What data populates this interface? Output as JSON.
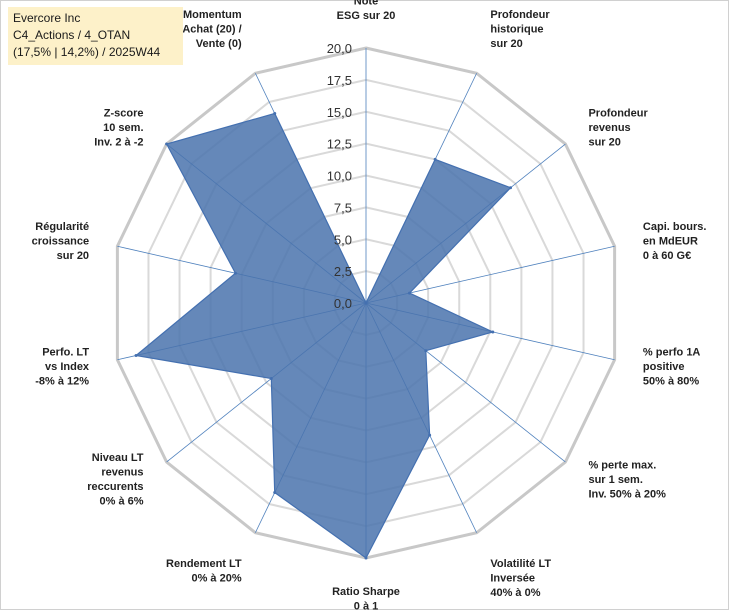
{
  "header": {
    "company": "Evercore Inc",
    "portfolio": "C4_Actions / 4_OTAN",
    "details": "(17,5% | 14,2%) / 2025W44"
  },
  "chart_data": {
    "type": "radar",
    "title": "",
    "rmin": 0,
    "rmax": 20,
    "tick_values": [
      0,
      2.5,
      5,
      7.5,
      10,
      12.5,
      15,
      17.5,
      20
    ],
    "tick_labels": [
      "0,0",
      "2,5",
      "5,0",
      "7,5",
      "10,0",
      "12,5",
      "15,0",
      "17,5",
      "20,0"
    ],
    "grid": true,
    "legend": "none",
    "axes": [
      {
        "label": [
          "Note",
          "ESG sur 20"
        ],
        "value": 0
      },
      {
        "label": [
          "Profondeur",
          "historique",
          "sur 20"
        ],
        "value": 12.5
      },
      {
        "label": [
          "Profondeur",
          "revenus",
          "sur 20"
        ],
        "value": 14.5
      },
      {
        "label": [
          "Capi. bours.",
          "en MdEUR",
          "0 à 60 G€"
        ],
        "value": 3.5
      },
      {
        "label": [
          "% perfo 1A",
          "positive",
          "50% à 80%"
        ],
        "value": 10.2
      },
      {
        "label": [
          "% perte max.",
          "sur 1 sem.",
          "Inv. 50% à 20%"
        ],
        "value": 6
      },
      {
        "label": [
          "Volatilité LT",
          "Inversée",
          "40% à 0%"
        ],
        "value": 11.5
      },
      {
        "label": [
          "Ratio Sharpe",
          "0 à 1"
        ],
        "value": 20
      },
      {
        "label": [
          "Rendement LT",
          "0% à 20%"
        ],
        "value": 16.5
      },
      {
        "label": [
          "Niveau LT",
          "revenus",
          "reccurents",
          "0% à 6%"
        ],
        "value": 9.5
      },
      {
        "label": [
          "Perfo. LT",
          "vs Index",
          "-8% à 12%"
        ],
        "value": 18.5
      },
      {
        "label": [
          "Régularité",
          "croissance",
          "sur 20"
        ],
        "value": 10.5
      },
      {
        "label": [
          "Z-score",
          "10 sem.",
          "Inv. 2 à -2"
        ],
        "value": 20
      },
      {
        "label": [
          "Momentum",
          "Achat (20) /",
          "Vente (0)"
        ],
        "value": 16.5
      }
    ],
    "colors": {
      "fill": "#4a73ad",
      "stroke": "#4470b0",
      "spoke": "#4f81bd",
      "grid": "#d9d9d9"
    }
  }
}
